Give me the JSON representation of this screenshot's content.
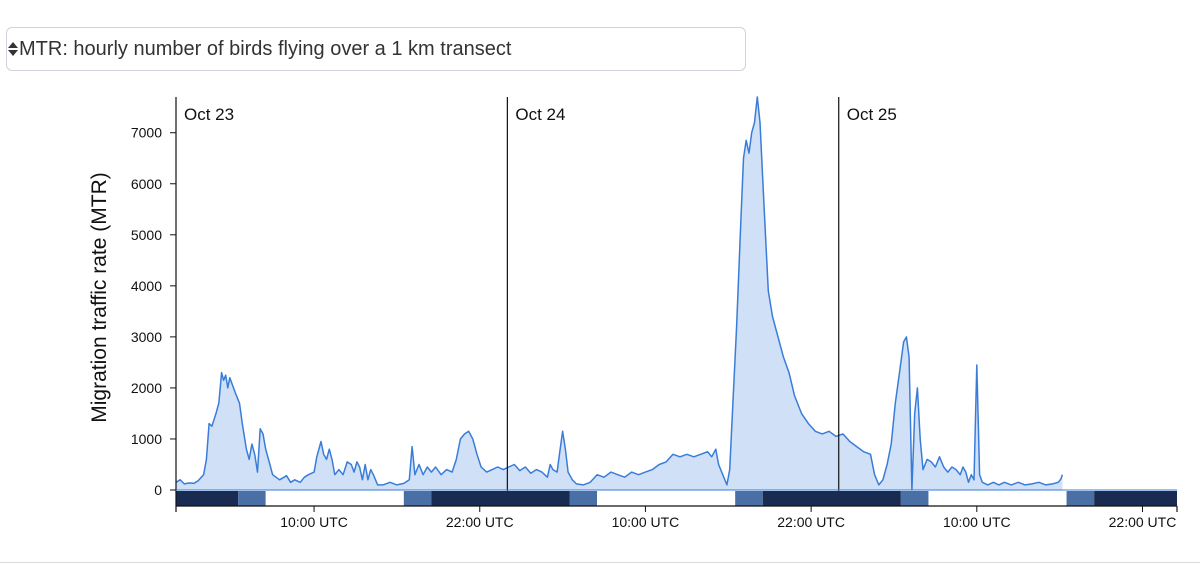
{
  "selector": {
    "selected": "MTR: hourly number of birds flying over a 1 km transect"
  },
  "chart_data": {
    "type": "area",
    "ylabel": "Migration traffic rate (MTR)",
    "ylim": [
      0,
      7700
    ],
    "yticks": [
      0,
      1000,
      2000,
      3000,
      4000,
      5000,
      6000,
      7000
    ],
    "xlim_hours": [
      0,
      72.5
    ],
    "xticks": [
      {
        "h": 10,
        "label": "10:00 UTC"
      },
      {
        "h": 22,
        "label": "22:00 UTC"
      },
      {
        "h": 34,
        "label": "10:00 UTC"
      },
      {
        "h": 46,
        "label": "22:00 UTC"
      },
      {
        "h": 58,
        "label": "10:00 UTC"
      },
      {
        "h": 70,
        "label": "22:00 UTC"
      }
    ],
    "day_markers": [
      {
        "h": 0,
        "label": "Oct 23"
      },
      {
        "h": 24,
        "label": "Oct 24"
      },
      {
        "h": 48,
        "label": "Oct 25"
      }
    ],
    "series": [
      {
        "color": "#3a7dd8",
        "fill": "#cfe0f7",
        "points": [
          [
            0,
            150
          ],
          [
            0.3,
            200
          ],
          [
            0.6,
            120
          ],
          [
            1,
            140
          ],
          [
            1.3,
            130
          ],
          [
            1.6,
            180
          ],
          [
            2,
            300
          ],
          [
            2.2,
            600
          ],
          [
            2.4,
            1300
          ],
          [
            2.6,
            1250
          ],
          [
            2.9,
            1500
          ],
          [
            3.1,
            1700
          ],
          [
            3.3,
            2300
          ],
          [
            3.45,
            2150
          ],
          [
            3.6,
            2250
          ],
          [
            3.75,
            2000
          ],
          [
            3.9,
            2200
          ],
          [
            4.1,
            2050
          ],
          [
            4.3,
            1900
          ],
          [
            4.6,
            1700
          ],
          [
            4.8,
            1300
          ],
          [
            5.1,
            800
          ],
          [
            5.3,
            600
          ],
          [
            5.5,
            900
          ],
          [
            5.7,
            700
          ],
          [
            5.9,
            350
          ],
          [
            6.1,
            1200
          ],
          [
            6.3,
            1100
          ],
          [
            6.5,
            800
          ],
          [
            6.8,
            500
          ],
          [
            7,
            300
          ],
          [
            7.5,
            200
          ],
          [
            8,
            280
          ],
          [
            8.3,
            150
          ],
          [
            8.6,
            200
          ],
          [
            9,
            150
          ],
          [
            9.3,
            250
          ],
          [
            9.6,
            300
          ],
          [
            10,
            350
          ],
          [
            10.2,
            650
          ],
          [
            10.5,
            950
          ],
          [
            10.7,
            700
          ],
          [
            10.9,
            600
          ],
          [
            11.1,
            800
          ],
          [
            11.3,
            600
          ],
          [
            11.5,
            300
          ],
          [
            11.8,
            400
          ],
          [
            12.1,
            300
          ],
          [
            12.4,
            550
          ],
          [
            12.7,
            500
          ],
          [
            12.9,
            350
          ],
          [
            13.1,
            550
          ],
          [
            13.3,
            450
          ],
          [
            13.5,
            200
          ],
          [
            13.7,
            500
          ],
          [
            13.9,
            200
          ],
          [
            14.1,
            400
          ],
          [
            14.3,
            300
          ],
          [
            14.6,
            100
          ],
          [
            15,
            100
          ],
          [
            15.5,
            150
          ],
          [
            16,
            100
          ],
          [
            16.5,
            130
          ],
          [
            16.9,
            200
          ],
          [
            17.1,
            850
          ],
          [
            17.3,
            300
          ],
          [
            17.6,
            500
          ],
          [
            17.9,
            300
          ],
          [
            18.2,
            450
          ],
          [
            18.5,
            350
          ],
          [
            18.8,
            450
          ],
          [
            19.2,
            300
          ],
          [
            19.6,
            400
          ],
          [
            20,
            350
          ],
          [
            20.3,
            600
          ],
          [
            20.6,
            1000
          ],
          [
            20.9,
            1100
          ],
          [
            21.2,
            1150
          ],
          [
            21.5,
            1000
          ],
          [
            21.8,
            700
          ],
          [
            22.1,
            450
          ],
          [
            22.5,
            350
          ],
          [
            22.9,
            400
          ],
          [
            23.3,
            450
          ],
          [
            23.7,
            400
          ],
          [
            24.1,
            450
          ],
          [
            24.5,
            500
          ],
          [
            24.9,
            380
          ],
          [
            25.3,
            450
          ],
          [
            25.7,
            330
          ],
          [
            26.1,
            400
          ],
          [
            26.5,
            350
          ],
          [
            26.9,
            250
          ],
          [
            27.1,
            500
          ],
          [
            27.3,
            400
          ],
          [
            27.6,
            350
          ],
          [
            27.8,
            750
          ],
          [
            28,
            1150
          ],
          [
            28.2,
            800
          ],
          [
            28.4,
            350
          ],
          [
            28.7,
            200
          ],
          [
            29,
            120
          ],
          [
            29.5,
            100
          ],
          [
            30,
            150
          ],
          [
            30.5,
            300
          ],
          [
            31,
            250
          ],
          [
            31.5,
            350
          ],
          [
            32,
            300
          ],
          [
            32.5,
            250
          ],
          [
            33,
            350
          ],
          [
            33.5,
            300
          ],
          [
            34,
            350
          ],
          [
            34.5,
            400
          ],
          [
            35,
            500
          ],
          [
            35.5,
            550
          ],
          [
            36,
            700
          ],
          [
            36.5,
            650
          ],
          [
            37,
            700
          ],
          [
            37.5,
            650
          ],
          [
            38,
            700
          ],
          [
            38.5,
            750
          ],
          [
            38.8,
            650
          ],
          [
            39.1,
            800
          ],
          [
            39.3,
            500
          ],
          [
            39.6,
            300
          ],
          [
            39.9,
            100
          ],
          [
            40.1,
            400
          ],
          [
            40.3,
            1500
          ],
          [
            40.6,
            3200
          ],
          [
            40.9,
            5200
          ],
          [
            41.1,
            6500
          ],
          [
            41.3,
            6850
          ],
          [
            41.5,
            6600
          ],
          [
            41.7,
            7000
          ],
          [
            41.9,
            7200
          ],
          [
            42.1,
            7700
          ],
          [
            42.3,
            7200
          ],
          [
            42.6,
            5500
          ],
          [
            42.9,
            3900
          ],
          [
            43.2,
            3400
          ],
          [
            43.6,
            3000
          ],
          [
            44,
            2600
          ],
          [
            44.4,
            2300
          ],
          [
            44.8,
            1850
          ],
          [
            45.3,
            1500
          ],
          [
            45.8,
            1300
          ],
          [
            46.3,
            1150
          ],
          [
            46.8,
            1100
          ],
          [
            47.3,
            1150
          ],
          [
            47.8,
            1050
          ],
          [
            48.3,
            1100
          ],
          [
            48.8,
            950
          ],
          [
            49.3,
            850
          ],
          [
            49.8,
            750
          ],
          [
            50.3,
            700
          ],
          [
            50.6,
            300
          ],
          [
            50.9,
            100
          ],
          [
            51.2,
            200
          ],
          [
            51.5,
            500
          ],
          [
            51.8,
            900
          ],
          [
            52.1,
            1700
          ],
          [
            52.4,
            2300
          ],
          [
            52.7,
            2900
          ],
          [
            52.9,
            3000
          ],
          [
            53.1,
            2600
          ],
          [
            53.3,
            0
          ],
          [
            53.5,
            1500
          ],
          [
            53.7,
            2000
          ],
          [
            53.9,
            1000
          ],
          [
            54.1,
            400
          ],
          [
            54.4,
            600
          ],
          [
            54.7,
            550
          ],
          [
            55,
            450
          ],
          [
            55.3,
            650
          ],
          [
            55.6,
            450
          ],
          [
            55.9,
            350
          ],
          [
            56.2,
            450
          ],
          [
            56.5,
            400
          ],
          [
            56.8,
            300
          ],
          [
            57,
            450
          ],
          [
            57.2,
            350
          ],
          [
            57.4,
            150
          ],
          [
            57.6,
            300
          ],
          [
            57.8,
            200
          ],
          [
            58,
            2450
          ],
          [
            58.2,
            300
          ],
          [
            58.4,
            150
          ],
          [
            58.8,
            100
          ],
          [
            59.2,
            150
          ],
          [
            59.6,
            100
          ],
          [
            60,
            150
          ],
          [
            60.5,
            100
          ],
          [
            61,
            150
          ],
          [
            61.5,
            100
          ],
          [
            62,
            120
          ],
          [
            62.5,
            150
          ],
          [
            63,
            100
          ],
          [
            63.5,
            120
          ],
          [
            63.9,
            150
          ],
          [
            64.1,
            220
          ],
          [
            64.2,
            300
          ]
        ]
      }
    ],
    "daylight_bar": [
      {
        "start": 0,
        "end": 4.5,
        "phase": "night",
        "color": "#1a2b52"
      },
      {
        "start": 4.5,
        "end": 6.5,
        "phase": "twilight",
        "color": "#4a6fa5"
      },
      {
        "start": 6.5,
        "end": 16.5,
        "phase": "day",
        "color": "#ffffff"
      },
      {
        "start": 16.5,
        "end": 18.5,
        "phase": "twilight",
        "color": "#4a6fa5"
      },
      {
        "start": 18.5,
        "end": 28.5,
        "phase": "night",
        "color": "#1a2b52"
      },
      {
        "start": 28.5,
        "end": 30.5,
        "phase": "twilight",
        "color": "#4a6fa5"
      },
      {
        "start": 30.5,
        "end": 40.5,
        "phase": "day",
        "color": "#ffffff"
      },
      {
        "start": 40.5,
        "end": 42.5,
        "phase": "twilight",
        "color": "#4a6fa5"
      },
      {
        "start": 42.5,
        "end": 52.5,
        "phase": "night",
        "color": "#1a2b52"
      },
      {
        "start": 52.5,
        "end": 54.5,
        "phase": "twilight",
        "color": "#4a6fa5"
      },
      {
        "start": 54.5,
        "end": 64.5,
        "phase": "day",
        "color": "#ffffff"
      },
      {
        "start": 64.5,
        "end": 66.5,
        "phase": "twilight",
        "color": "#4a6fa5"
      },
      {
        "start": 66.5,
        "end": 72.5,
        "phase": "night",
        "color": "#1a2b52"
      }
    ]
  }
}
